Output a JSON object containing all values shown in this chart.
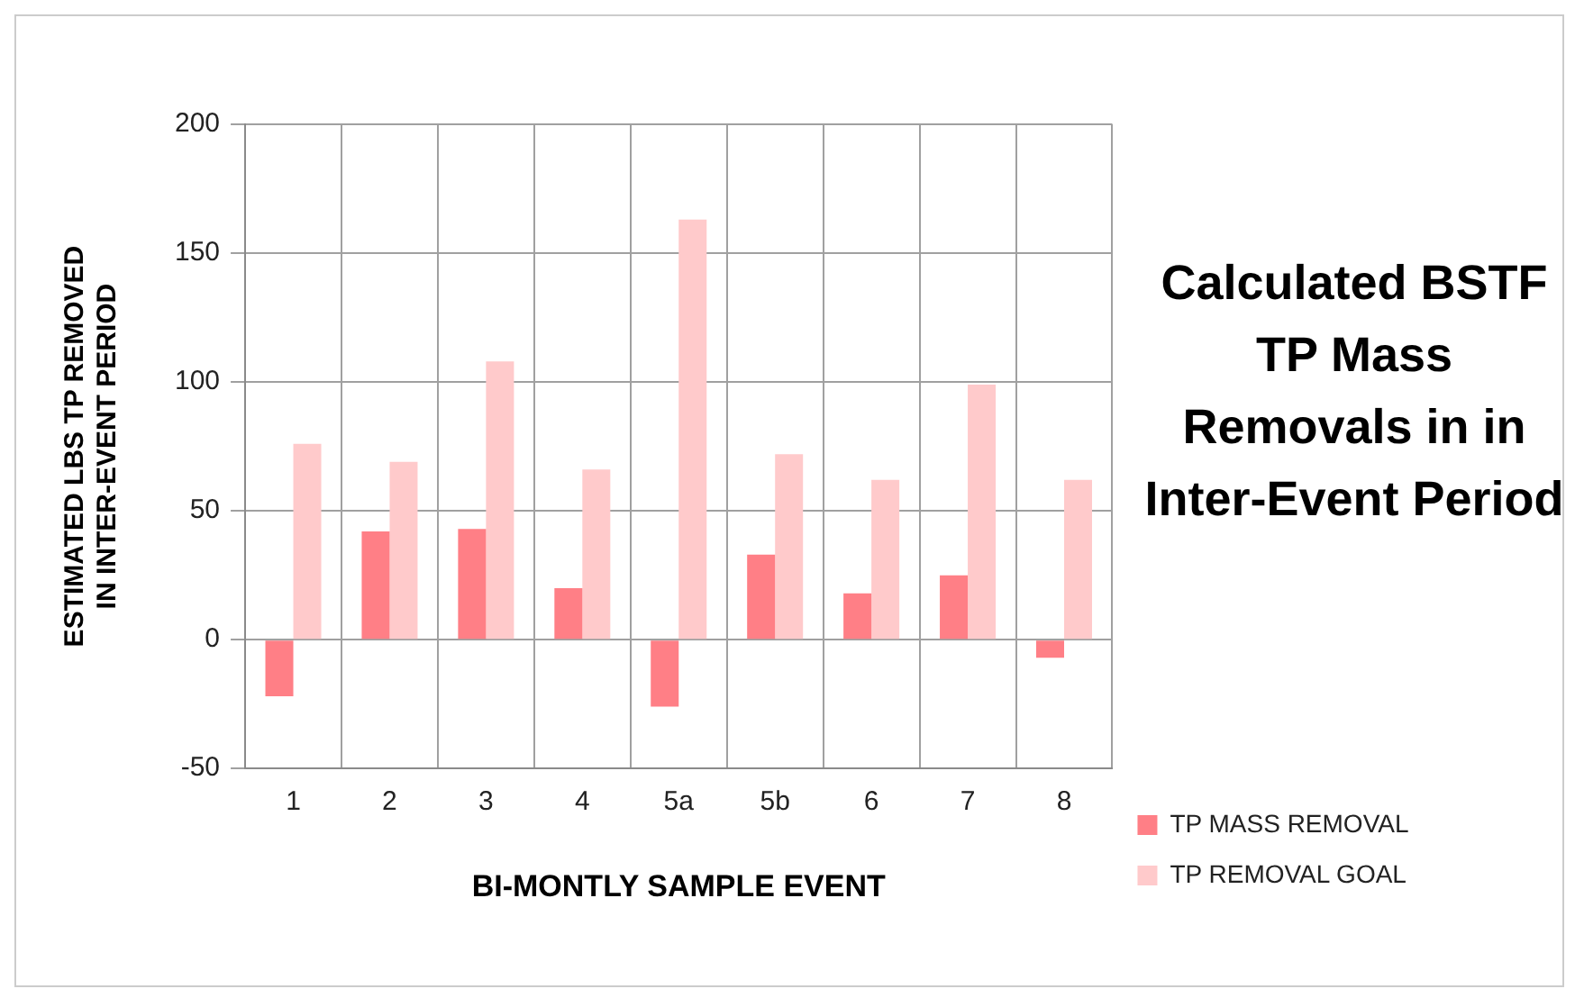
{
  "chart_data": {
    "type": "bar",
    "title": "Calculated BSTF TP Mass Removals in in Inter-Event Period",
    "xlabel": "BI-MONTLY SAMPLE EVENT",
    "ylabel": "ESTIMATED LBS TP REMOVED\nIN INTER-EVENT PERIOD",
    "categories": [
      "1",
      "2",
      "3",
      "4",
      "5a",
      "5b",
      "6",
      "7",
      "8"
    ],
    "series": [
      {
        "name": "TP MASS REMOVAL",
        "color": "#ff7f86",
        "values": [
          -22,
          42,
          43,
          20,
          -26,
          33,
          18,
          25,
          -7
        ]
      },
      {
        "name": "TP REMOVAL GOAL",
        "color": "#ffcacb",
        "values": [
          76,
          69,
          108,
          66,
          163,
          72,
          62,
          99,
          62
        ]
      }
    ],
    "ylim": [
      -50,
      200
    ],
    "yticks": [
      -50,
      0,
      50,
      100,
      150,
      200
    ],
    "grid": true,
    "legend": "right"
  }
}
